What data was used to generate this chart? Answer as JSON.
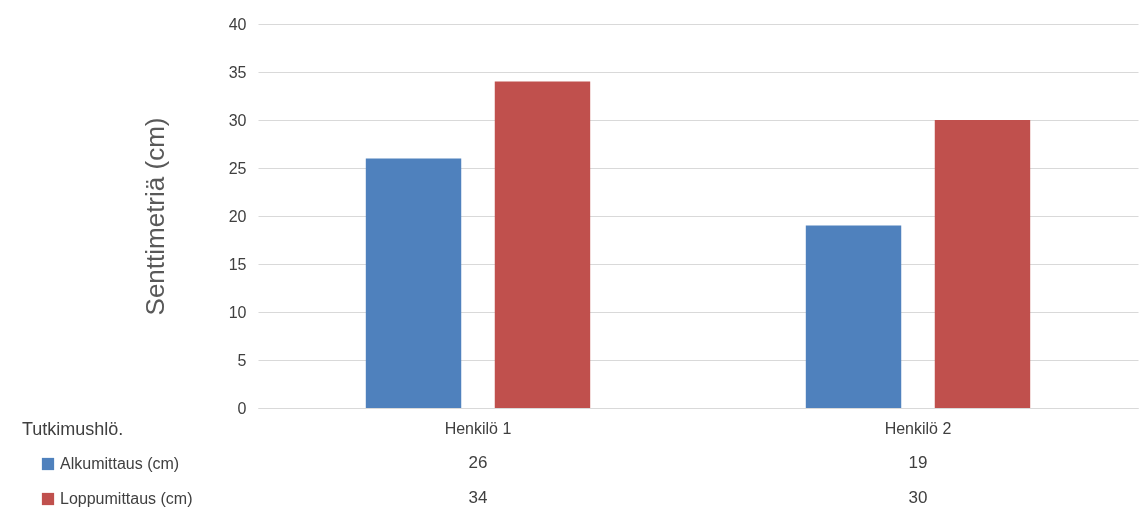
{
  "chart_data": {
    "type": "bar",
    "ylabel": "Senttimetriä (cm)",
    "annotations": [
      "Tutkimushlö."
    ],
    "categories": [
      "Henkilö 1",
      "Henkilö 2"
    ],
    "series": [
      {
        "name": "Alkumittaus (cm)",
        "color": "#4f81bd",
        "values": [
          26,
          19
        ]
      },
      {
        "name": "Loppumittaus (cm)",
        "color": "#c0504d",
        "values": [
          34,
          30
        ]
      }
    ],
    "ylim": [
      0,
      40
    ],
    "yticks": [
      0,
      5,
      10,
      15,
      20,
      25,
      30,
      35,
      40
    ],
    "grid": "y",
    "legend": "bottom",
    "data_labels": true
  }
}
